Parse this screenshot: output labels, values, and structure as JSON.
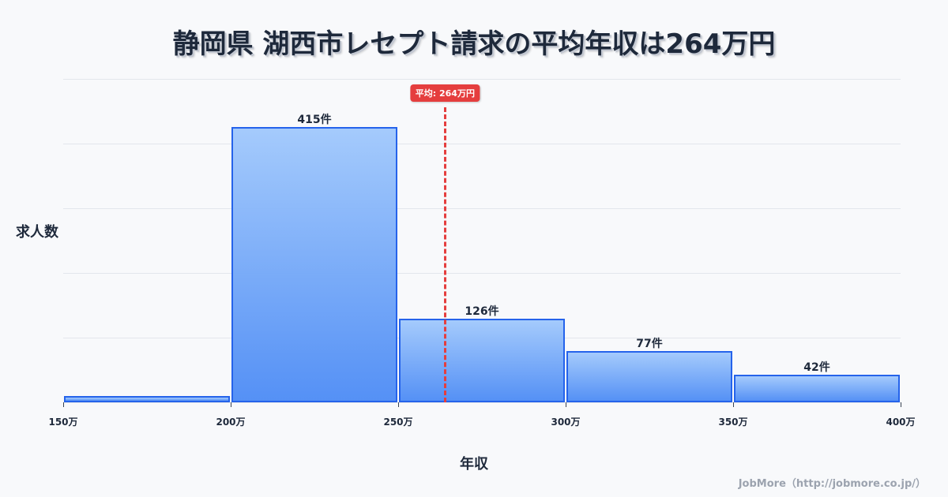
{
  "header": {
    "title": "静岡県 湖西市レセプト請求の平均年収は264万円"
  },
  "axes": {
    "y_label": "求人数",
    "x_label": "年収"
  },
  "average": {
    "badge": "平均: 264万円",
    "value": 264
  },
  "credit": "JobMore（http://jobmore.co.jp/）",
  "colors": {
    "bar_top": "#a3cbfc",
    "bar_bottom": "#4c8bf5",
    "bar_border": "#2563eb",
    "average_line": "#e53e3e",
    "background": "#f8f9fb"
  },
  "chart_data": {
    "type": "bar",
    "title": "静岡県 湖西市レセプト請求の平均年収は264万円",
    "xlabel": "年収",
    "ylabel": "求人数",
    "categories": [
      "150万-200万",
      "200万-250万",
      "250万-300万",
      "300万-350万",
      "350万-400万"
    ],
    "values": [
      10,
      415,
      126,
      77,
      42
    ],
    "bar_labels": [
      "",
      "415件",
      "126件",
      "77件",
      "42件"
    ],
    "x_ticks": [
      "150万",
      "200万",
      "250万",
      "300万",
      "350万",
      "400万"
    ],
    "x_range": [
      150,
      400
    ],
    "ylim": [
      0,
      487
    ],
    "grid": true,
    "annotations": [
      {
        "type": "vline",
        "x": 264,
        "label": "平均: 264万円",
        "color": "#e53e3e",
        "style": "dashed"
      }
    ]
  }
}
